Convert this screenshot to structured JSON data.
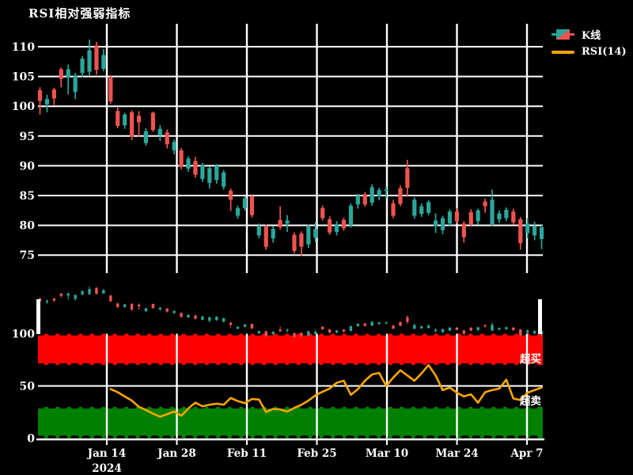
{
  "title": "RSI相对强弱指标",
  "colors": {
    "background": "#000000",
    "grid": "#ffffff",
    "text": "#ffffff",
    "up": "#2aa79b",
    "down": "#ef5350",
    "rsi_line": "#ffa500",
    "overbought_band": "#ff0000",
    "oversold_band": "#008000"
  },
  "chart_data": [
    {
      "type": "candlestick",
      "name": "K线",
      "up_color": "#2aa79b",
      "down_color": "#ef5350",
      "ylim": [
        74,
        112
      ],
      "grid": true,
      "y_ticks": [
        110,
        105,
        100,
        95,
        90,
        85,
        80,
        75
      ],
      "x_tick_labels": [
        "Jan 14",
        "Jan 28",
        "Feb 11",
        "Feb 25",
        "Mar 10",
        "Mar 24",
        "Apr 7"
      ],
      "x_year_label": "2024",
      "ohlc": [
        [
          102.7,
          103.2,
          98.6,
          100.9
        ],
        [
          100.3,
          101.9,
          99.0,
          101.2
        ],
        [
          102.8,
          103.1,
          100.2,
          101.3
        ],
        [
          106.2,
          106.5,
          103.2,
          104.6
        ],
        [
          104.8,
          107.0,
          102.0,
          106.2
        ],
        [
          102.4,
          105.6,
          101.2,
          105.2
        ],
        [
          105.6,
          108.4,
          104.8,
          108.0
        ],
        [
          105.8,
          111.2,
          105.2,
          109.4
        ],
        [
          110.2,
          110.8,
          105.3,
          106.1
        ],
        [
          106.3,
          109.6,
          105.9,
          108.6
        ],
        [
          104.8,
          105.2,
          100.4,
          100.8
        ],
        [
          99.2,
          99.8,
          96.3,
          96.7
        ],
        [
          96.8,
          98.9,
          96.2,
          98.6
        ],
        [
          99.0,
          99.3,
          94.3,
          94.9
        ],
        [
          98.4,
          99.2,
          94.9,
          97.3
        ],
        [
          93.8,
          96.3,
          93.4,
          95.8
        ],
        [
          98.9,
          99.1,
          95.7,
          96.0
        ],
        [
          95.1,
          96.8,
          94.2,
          96.2
        ],
        [
          95.6,
          96.1,
          92.9,
          93.6
        ],
        [
          92.6,
          94.4,
          91.9,
          94.0
        ],
        [
          92.6,
          93.0,
          89.4,
          89.8
        ],
        [
          89.5,
          91.6,
          89.0,
          91.2
        ],
        [
          90.8,
          91.5,
          88.0,
          88.5
        ],
        [
          87.8,
          90.5,
          87.3,
          90.2
        ],
        [
          87.1,
          89.9,
          86.2,
          89.6
        ],
        [
          87.6,
          90.3,
          87.0,
          90.0
        ],
        [
          86.5,
          89.3,
          86.0,
          88.9
        ],
        [
          85.8,
          86.2,
          82.4,
          84.3
        ],
        [
          81.6,
          83.3,
          81.1,
          82.9
        ],
        [
          82.9,
          84.9,
          82.5,
          84.5
        ],
        [
          84.9,
          85.2,
          81.3,
          81.7
        ],
        [
          78.3,
          80.3,
          77.8,
          79.8
        ],
        [
          79.8,
          80.1,
          75.9,
          76.4
        ],
        [
          77.8,
          79.9,
          77.1,
          79.4
        ],
        [
          80.9,
          83.2,
          79.3,
          79.7
        ],
        [
          80.3,
          81.7,
          78.9,
          80.8
        ],
        [
          78.4,
          78.8,
          75.3,
          75.7
        ],
        [
          78.6,
          79.0,
          74.9,
          76.4
        ],
        [
          76.8,
          80.1,
          76.2,
          79.8
        ],
        [
          77.9,
          80.5,
          77.2,
          79.4
        ],
        [
          82.9,
          83.3,
          80.8,
          81.2
        ],
        [
          81.0,
          81.5,
          78.4,
          78.8
        ],
        [
          78.9,
          80.7,
          78.3,
          80.2
        ],
        [
          80.9,
          81.3,
          79.1,
          79.5
        ],
        [
          80.0,
          83.7,
          79.6,
          83.3
        ],
        [
          83.5,
          85.3,
          82.8,
          85.0
        ],
        [
          85.2,
          85.6,
          83.1,
          83.5
        ],
        [
          83.8,
          86.9,
          83.3,
          86.4
        ],
        [
          84.9,
          86.3,
          84.2,
          85.9
        ],
        [
          85.9,
          86.5,
          84.5,
          86.0
        ],
        [
          83.7,
          84.3,
          81.2,
          81.6
        ],
        [
          86.2,
          86.7,
          83.2,
          83.6
        ],
        [
          89.6,
          91.0,
          84.8,
          86.3
        ],
        [
          81.6,
          84.7,
          81.1,
          84.3
        ],
        [
          81.9,
          83.7,
          81.4,
          83.2
        ],
        [
          82.1,
          84.2,
          81.7,
          83.9
        ],
        [
          79.9,
          82.0,
          78.7,
          80.8
        ],
        [
          79.2,
          81.6,
          78.5,
          81.2
        ],
        [
          80.3,
          82.7,
          79.8,
          82.3
        ],
        [
          82.3,
          82.9,
          80.3,
          80.7
        ],
        [
          80.3,
          80.7,
          77.1,
          78.0
        ],
        [
          82.2,
          82.7,
          79.8,
          80.2
        ],
        [
          80.7,
          82.8,
          80.1,
          82.5
        ],
        [
          84.0,
          84.5,
          82.1,
          83.2
        ],
        [
          80.2,
          86.0,
          79.8,
          84.3
        ],
        [
          81.0,
          82.5,
          80.4,
          82.0
        ],
        [
          81.2,
          83.0,
          80.7,
          82.6
        ],
        [
          82.3,
          82.8,
          80.1,
          80.5
        ],
        [
          81.0,
          81.4,
          75.9,
          77.0
        ],
        [
          78.7,
          81.2,
          77.8,
          80.3
        ],
        [
          78.3,
          80.6,
          77.5,
          79.9
        ],
        [
          77.7,
          80.2,
          76.0,
          79.7
        ]
      ]
    },
    {
      "type": "line",
      "name": "RSI(14)",
      "color": "#ffa500",
      "ylim": [
        0,
        100
      ],
      "y_ticks": [
        100,
        50,
        0
      ],
      "start_index": 10,
      "values": [
        47,
        44,
        40,
        36,
        30,
        27,
        23.5,
        20.5,
        23,
        25.5,
        21.5,
        28.5,
        34,
        30.5,
        32,
        33,
        32,
        38.5,
        35.5,
        33.5,
        37.5,
        37,
        25,
        28,
        27.5,
        25.5,
        29,
        32,
        36,
        41,
        44.5,
        47.5,
        53,
        55,
        41.5,
        47,
        55,
        61,
        62.5,
        50,
        58,
        65,
        60,
        55,
        62,
        70,
        60,
        46,
        48.5,
        43.5,
        40,
        42,
        34,
        44,
        46,
        47.5,
        56,
        38,
        36.5,
        43.5,
        46,
        48.5
      ],
      "plot_bands": [
        {
          "label": "超买",
          "from": 70,
          "to": 100,
          "color": "#ff0000"
        },
        {
          "label": "超卖",
          "from": 0,
          "to": 30,
          "color": "#008000"
        }
      ]
    },
    {
      "type": "candlestick",
      "name": "navigator",
      "mirrors_series": "K线"
    }
  ]
}
